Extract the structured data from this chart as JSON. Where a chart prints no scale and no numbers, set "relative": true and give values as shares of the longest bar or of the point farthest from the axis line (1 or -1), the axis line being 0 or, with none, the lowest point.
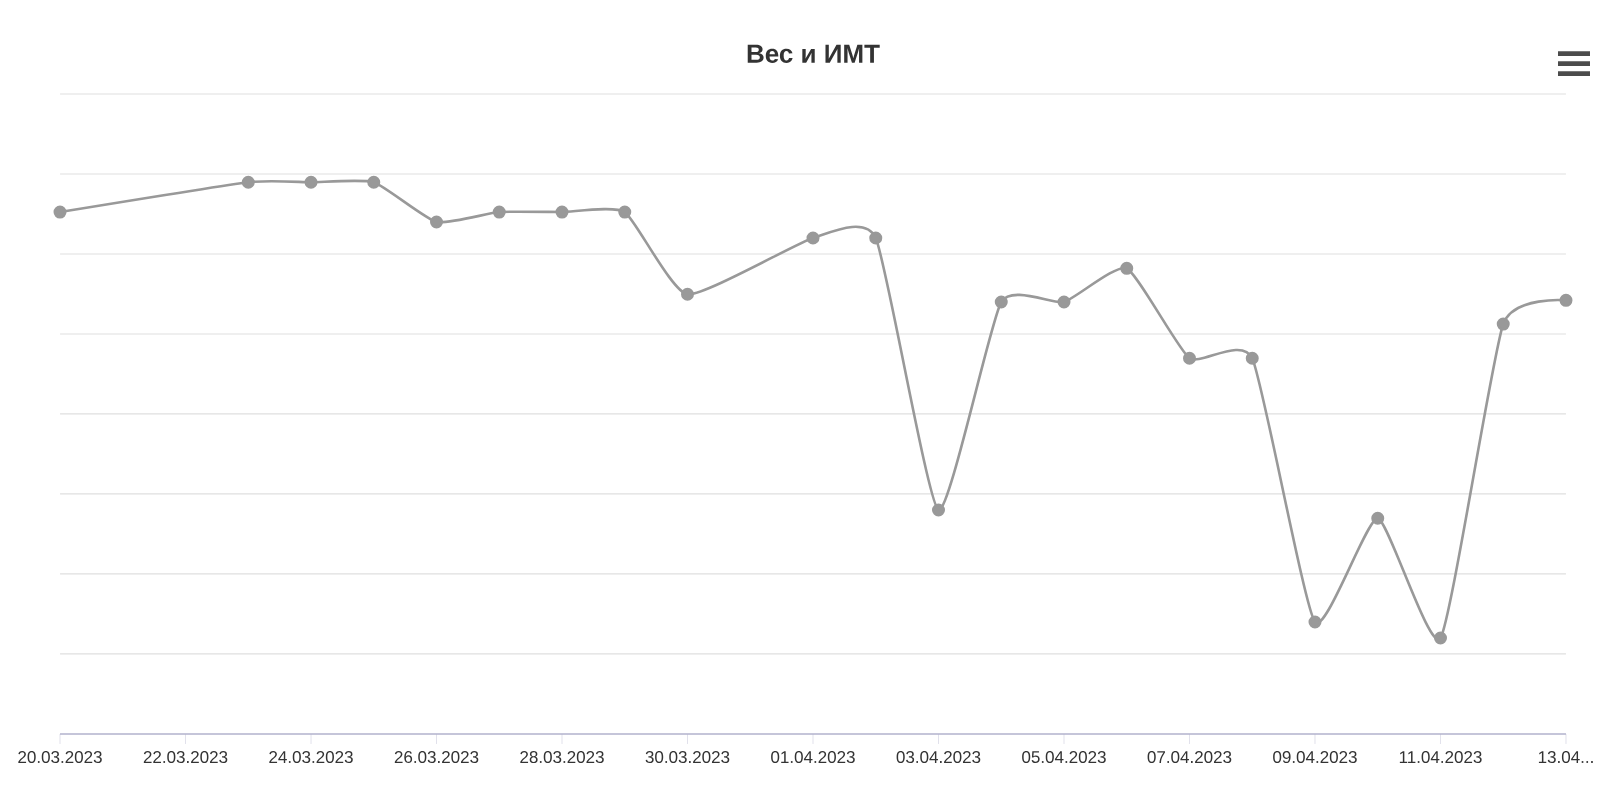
{
  "chart_data": {
    "type": "line",
    "title": "Вес и ИМТ",
    "relative": true,
    "grid": "y",
    "marker": "circle",
    "line_style": "solid",
    "x": [
      "2023-03-20",
      "2023-03-23",
      "2023-03-24",
      "2023-03-25",
      "2023-03-26",
      "2023-03-27",
      "2023-03-28",
      "2023-03-29",
      "2023-03-30",
      "2023-04-01",
      "2023-04-02",
      "2023-04-03",
      "2023-04-04",
      "2023-04-05",
      "2023-04-06",
      "2023-04-07",
      "2023-04-08",
      "2023-04-09",
      "2023-04-10",
      "2023-04-11",
      "2023-04-12",
      "2023-04-13"
    ],
    "series": [
      {
        "color": "#999999",
        "values": [
          0.946,
          1,
          1,
          1,
          0.928,
          0.946,
          0.946,
          0.946,
          0.797,
          0.899,
          0.899,
          0.406,
          0.783,
          0.783,
          0.844,
          0.681,
          0.681,
          0.203,
          0.391,
          0.174,
          0.743,
          0.786
        ]
      }
    ],
    "xlim": [
      "2023-03-20",
      "2023-04-13"
    ],
    "xticks": [
      {
        "value": "2023-03-20",
        "label": "20.03.2023"
      },
      {
        "value": "2023-03-22",
        "label": "22.03.2023"
      },
      {
        "value": "2023-03-24",
        "label": "24.03.2023"
      },
      {
        "value": "2023-03-26",
        "label": "26.03.2023"
      },
      {
        "value": "2023-03-28",
        "label": "28.03.2023"
      },
      {
        "value": "2023-03-30",
        "label": "30.03.2023"
      },
      {
        "value": "2023-04-01",
        "label": "01.04.2023"
      },
      {
        "value": "2023-04-03",
        "label": "03.04.2023"
      },
      {
        "value": "2023-04-05",
        "label": "05.04.2023"
      },
      {
        "value": "2023-04-07",
        "label": "07.04.2023"
      },
      {
        "value": "2023-04-09",
        "label": "09.04.2023"
      },
      {
        "value": "2023-04-11",
        "label": "11.04.2023"
      },
      {
        "value": "2023-04-13",
        "label": "13.04..."
      }
    ]
  }
}
